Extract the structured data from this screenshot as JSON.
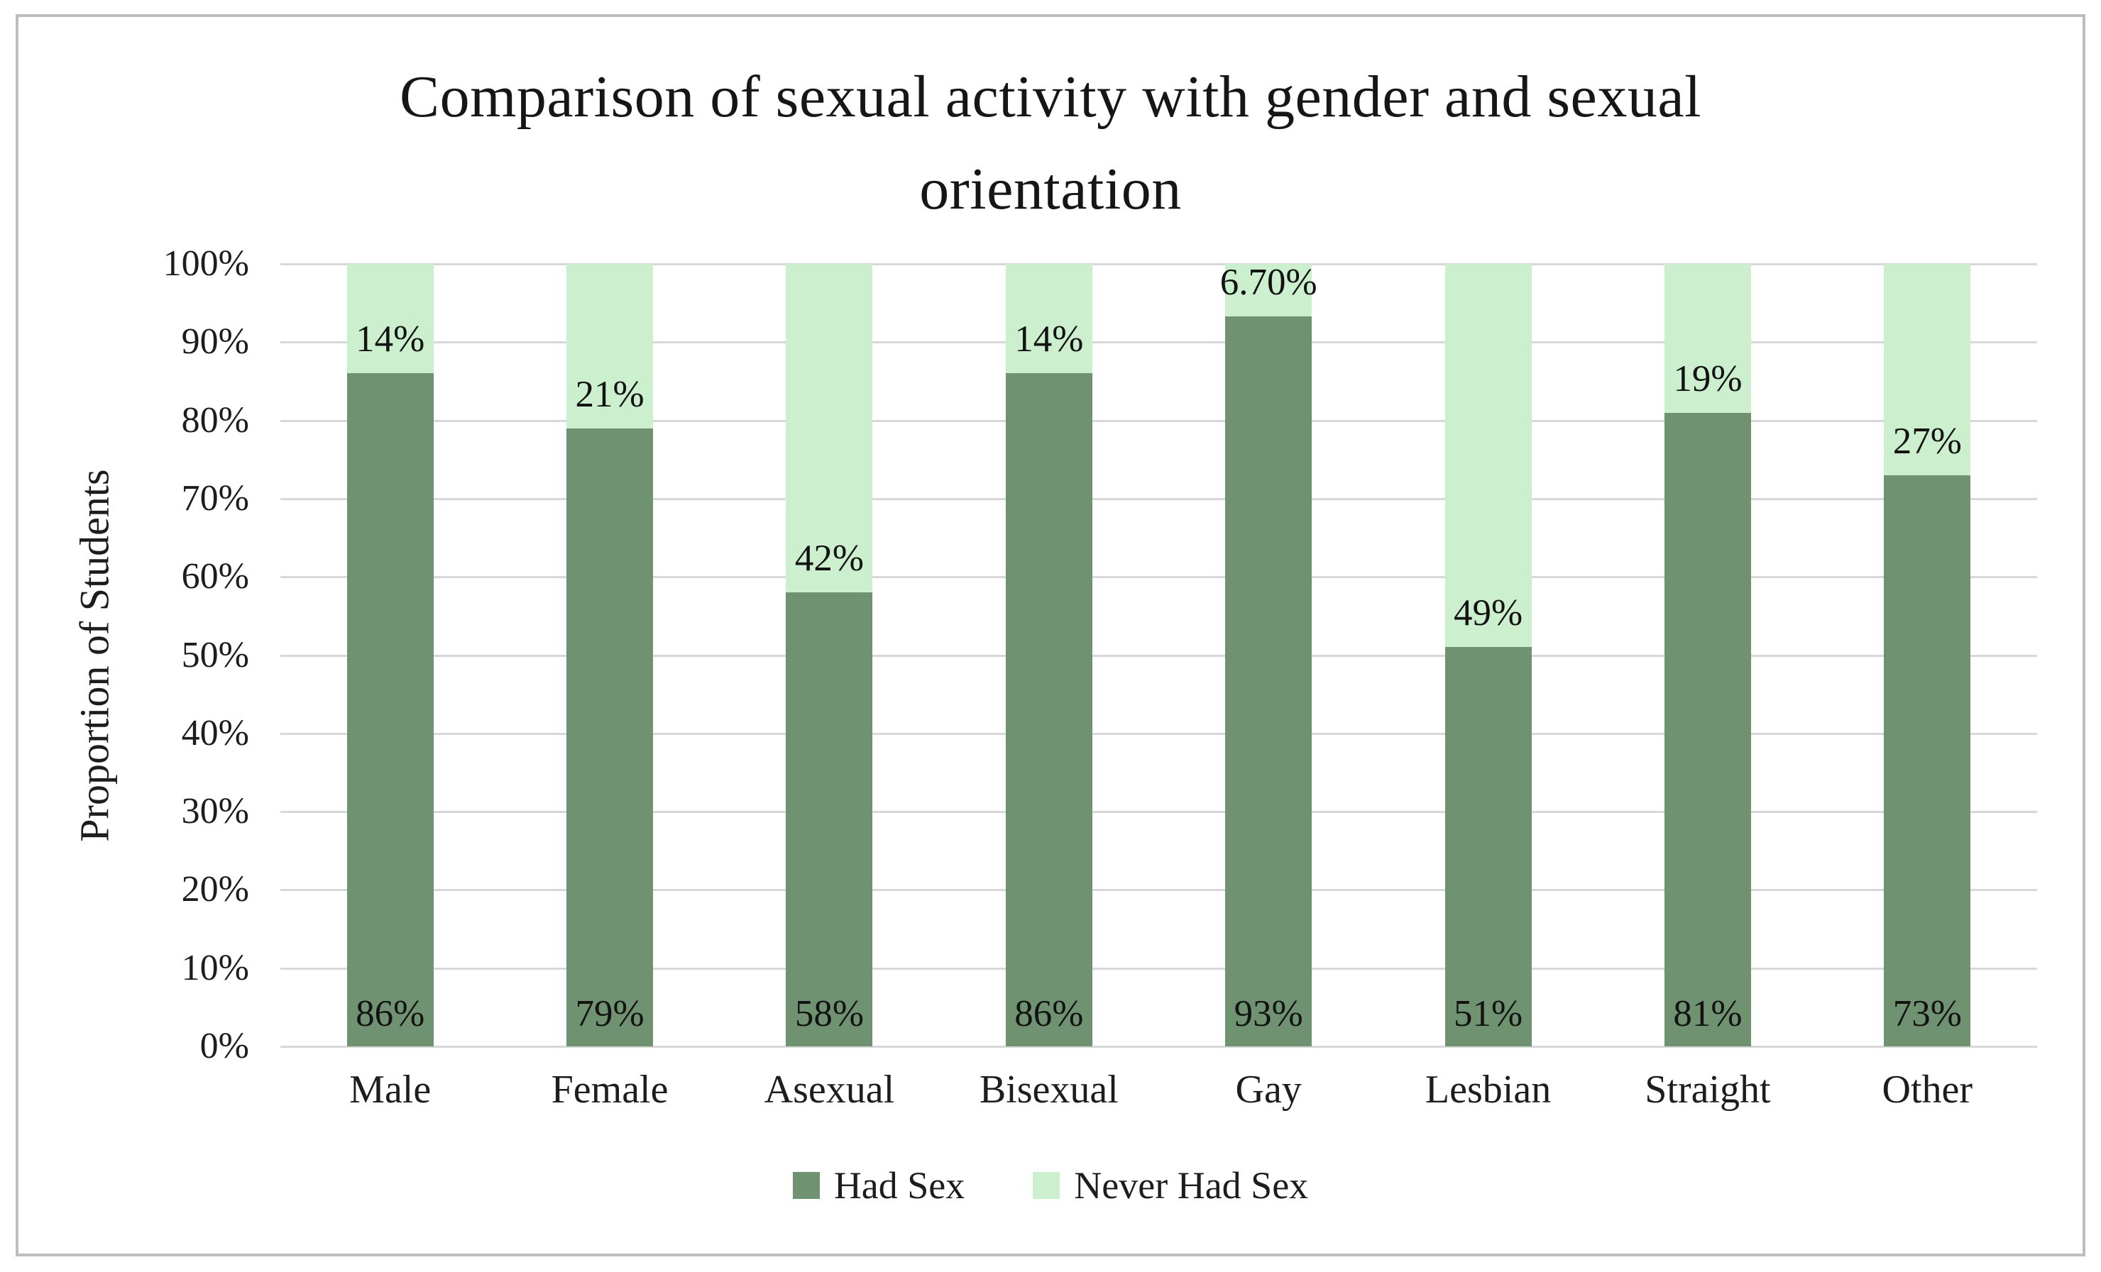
{
  "title": {
    "lines": [
      "Comparison of sexual activity with gender and sexual",
      "orientation"
    ]
  },
  "chart_data": {
    "type": "bar",
    "stacked": true,
    "percent_stacked": true,
    "categories": [
      "Male",
      "Female",
      "Asexual",
      "Bisexual",
      "Gay",
      "Lesbian",
      "Straight",
      "Other"
    ],
    "series": [
      {
        "name": "Had Sex",
        "color": "#6f9270",
        "values": [
          86,
          79,
          58,
          86,
          93.3,
          51,
          81,
          73
        ],
        "labels": [
          "86%",
          "79%",
          "58%",
          "86%",
          "93%",
          "51%",
          "81%",
          "73%"
        ]
      },
      {
        "name": "Never Had Sex",
        "color": "#ccf0ce",
        "values": [
          14,
          21,
          42,
          14,
          6.7,
          49,
          19,
          27
        ],
        "labels": [
          "14%",
          "21%",
          "42%",
          "14%",
          "6.70%",
          "49%",
          "19%",
          "27%"
        ]
      }
    ],
    "xlabel": "",
    "ylabel": "Proportion of Students",
    "yticks": [
      "0%",
      "10%",
      "20%",
      "30%",
      "40%",
      "50%",
      "60%",
      "70%",
      "80%",
      "90%",
      "100%"
    ],
    "ylim": [
      0,
      100
    ],
    "grid": true,
    "legend_position": "bottom"
  },
  "colors": {
    "had_sex": "#6f9270",
    "never_had_sex": "#ccf0ce",
    "gridline": "#d8d8d8",
    "frame_border": "#bdbdbd",
    "text": "#1b1b1b",
    "background": "#ffffff"
  }
}
